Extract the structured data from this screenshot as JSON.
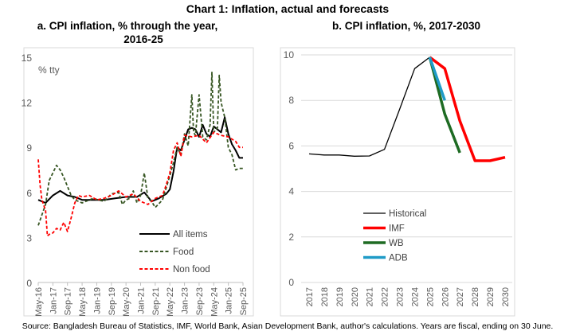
{
  "title": "Chart 1: Inflation, actual and forecasts",
  "source": "Source: Bangladesh Bureau of Statistics, IMF, World Bank, Asian Development Bank, author's calculations. Years are fiscal, ending on 30 June.",
  "chart_data": [
    {
      "type": "line",
      "subtitle_lines": [
        "a.   CPI inflation, % through the year,",
        "2016-25"
      ],
      "ylabel": "% tty",
      "ylim": [
        0,
        15
      ],
      "yticks": [
        "0",
        "3",
        "6",
        "9",
        "12",
        "15"
      ],
      "xlim": [
        0,
        112
      ],
      "x_unit": "months since May-16",
      "xticks": [
        {
          "m": 0,
          "label": "May-16"
        },
        {
          "m": 8,
          "label": "Jan-17"
        },
        {
          "m": 16,
          "label": "Sep-17"
        },
        {
          "m": 24,
          "label": "May-18"
        },
        {
          "m": 32,
          "label": "Jan-19"
        },
        {
          "m": 40,
          "label": "Sep-19"
        },
        {
          "m": 48,
          "label": "May-20"
        },
        {
          "m": 56,
          "label": "Jan-21"
        },
        {
          "m": 64,
          "label": "Sep-21"
        },
        {
          "m": 72,
          "label": "May-22"
        },
        {
          "m": 80,
          "label": "Jan-23"
        },
        {
          "m": 88,
          "label": "Sep-23"
        },
        {
          "m": 96,
          "label": "May-24"
        },
        {
          "m": 104,
          "label": "Jan-25"
        },
        {
          "m": 112,
          "label": "Sep-25"
        }
      ],
      "series": [
        {
          "name": "All items",
          "color": "#000000",
          "dash": "none",
          "points": [
            [
              0,
              5.5
            ],
            [
              4,
              5.3
            ],
            [
              8,
              5.8
            ],
            [
              12,
              6.1
            ],
            [
              16,
              5.8
            ],
            [
              20,
              5.7
            ],
            [
              24,
              5.5
            ],
            [
              30,
              5.5
            ],
            [
              36,
              5.5
            ],
            [
              42,
              5.6
            ],
            [
              48,
              5.7
            ],
            [
              54,
              5.7
            ],
            [
              58,
              6.0
            ],
            [
              62,
              5.4
            ],
            [
              66,
              5.6
            ],
            [
              70,
              5.9
            ],
            [
              72,
              6.2
            ],
            [
              74,
              7.4
            ],
            [
              76,
              9.0
            ],
            [
              78,
              8.8
            ],
            [
              80,
              9.5
            ],
            [
              82,
              10.2
            ],
            [
              84,
              10.3
            ],
            [
              86,
              10.2
            ],
            [
              88,
              9.7
            ],
            [
              90,
              10.5
            ],
            [
              92,
              9.9
            ],
            [
              94,
              9.7
            ],
            [
              96,
              10.4
            ],
            [
              100,
              10.0
            ],
            [
              102,
              11.0
            ],
            [
              104,
              9.9
            ],
            [
              106,
              9.2
            ],
            [
              108,
              8.8
            ],
            [
              110,
              8.3
            ],
            [
              112,
              8.3
            ]
          ]
        },
        {
          "name": "Food",
          "color": "#375623",
          "dash": "4,2.5",
          "points": [
            [
              0,
              3.8
            ],
            [
              2,
              4.5
            ],
            [
              4,
              5.2
            ],
            [
              6,
              6.8
            ],
            [
              8,
              7.3
            ],
            [
              10,
              7.8
            ],
            [
              12,
              7.5
            ],
            [
              14,
              7.0
            ],
            [
              16,
              6.4
            ],
            [
              18,
              5.8
            ],
            [
              20,
              5.5
            ],
            [
              24,
              5.3
            ],
            [
              30,
              5.6
            ],
            [
              36,
              5.4
            ],
            [
              40,
              5.9
            ],
            [
              44,
              6.0
            ],
            [
              46,
              5.2
            ],
            [
              48,
              5.5
            ],
            [
              50,
              5.6
            ],
            [
              52,
              6.1
            ],
            [
              54,
              5.3
            ],
            [
              56,
              5.8
            ],
            [
              58,
              7.3
            ],
            [
              60,
              5.6
            ],
            [
              62,
              5.4
            ],
            [
              64,
              5.0
            ],
            [
              68,
              5.5
            ],
            [
              70,
              6.3
            ],
            [
              72,
              7.1
            ],
            [
              74,
              8.0
            ],
            [
              76,
              9.0
            ],
            [
              78,
              8.5
            ],
            [
              80,
              9.9
            ],
            [
              82,
              9.1
            ],
            [
              84,
              12.5
            ],
            [
              85,
              10.0
            ],
            [
              86,
              9.8
            ],
            [
              88,
              12.5
            ],
            [
              90,
              9.7
            ],
            [
              92,
              9.5
            ],
            [
              94,
              10.5
            ],
            [
              95,
              14.0
            ],
            [
              96,
              10.0
            ],
            [
              98,
              10.3
            ],
            [
              99,
              13.8
            ],
            [
              100,
              12.0
            ],
            [
              102,
              11.0
            ],
            [
              104,
              9.0
            ],
            [
              106,
              8.5
            ],
            [
              108,
              7.5
            ],
            [
              110,
              7.6
            ],
            [
              112,
              7.6
            ]
          ]
        },
        {
          "name": "Non food",
          "color": "#ff0000",
          "dash": "4,2.5",
          "points": [
            [
              0,
              8.2
            ],
            [
              1,
              6.5
            ],
            [
              2,
              5.5
            ],
            [
              4,
              4.8
            ],
            [
              5,
              3.1
            ],
            [
              6,
              3.2
            ],
            [
              8,
              3.3
            ],
            [
              10,
              3.6
            ],
            [
              12,
              3.5
            ],
            [
              14,
              4.0
            ],
            [
              16,
              3.4
            ],
            [
              18,
              4.3
            ],
            [
              20,
              5.3
            ],
            [
              22,
              5.8
            ],
            [
              24,
              5.7
            ],
            [
              28,
              5.8
            ],
            [
              32,
              5.5
            ],
            [
              36,
              5.6
            ],
            [
              40,
              5.8
            ],
            [
              44,
              6.1
            ],
            [
              48,
              5.7
            ],
            [
              52,
              5.9
            ],
            [
              56,
              5.4
            ],
            [
              60,
              5.2
            ],
            [
              64,
              5.6
            ],
            [
              68,
              5.8
            ],
            [
              70,
              6.5
            ],
            [
              72,
              7.3
            ],
            [
              74,
              8.8
            ],
            [
              76,
              9.3
            ],
            [
              78,
              8.4
            ],
            [
              80,
              9.8
            ],
            [
              84,
              9.7
            ],
            [
              88,
              9.8
            ],
            [
              92,
              9.3
            ],
            [
              96,
              10.0
            ],
            [
              100,
              9.8
            ],
            [
              104,
              9.7
            ],
            [
              108,
              9.4
            ],
            [
              110,
              9.0
            ],
            [
              112,
              9.0
            ]
          ]
        }
      ],
      "legend": "bottom-center"
    },
    {
      "type": "line",
      "subtitle_lines": [
        "b.   CPI inflation, %, 2017-2030"
      ],
      "ylim": [
        0,
        10
      ],
      "yticks": [
        "0",
        "2",
        "4",
        "6",
        "8",
        "10"
      ],
      "categories": [
        "2017",
        "2018",
        "2019",
        "2020",
        "2021",
        "2022",
        "2023",
        "2024",
        "2025",
        "2026",
        "2027",
        "2028",
        "2029",
        "2030"
      ],
      "series": [
        {
          "name": "Historical",
          "color": "#000000",
          "width": 1.3,
          "points": [
            [
              2017,
              5.65
            ],
            [
              2018,
              5.6
            ],
            [
              2019,
              5.6
            ],
            [
              2020,
              5.55
            ],
            [
              2021,
              5.56
            ],
            [
              2022,
              5.85
            ],
            [
              2023,
              7.6
            ],
            [
              2024,
              9.4
            ],
            [
              2025,
              9.9
            ]
          ]
        },
        {
          "name": "IMF",
          "color": "#ff0000",
          "width": 3.5,
          "points": [
            [
              2025,
              9.9
            ],
            [
              2026,
              9.4
            ],
            [
              2027,
              7.1
            ],
            [
              2028,
              5.35
            ],
            [
              2029,
              5.35
            ],
            [
              2030,
              5.5
            ]
          ]
        },
        {
          "name": "WB",
          "color": "#1e6b23",
          "width": 3.5,
          "points": [
            [
              2025,
              9.9
            ],
            [
              2026,
              7.4
            ],
            [
              2027,
              5.7
            ]
          ]
        },
        {
          "name": "ADB",
          "color": "#1f9bc7",
          "width": 3.5,
          "points": [
            [
              2025,
              9.9
            ],
            [
              2026,
              8.0
            ]
          ]
        }
      ],
      "legend": "center-left"
    }
  ]
}
